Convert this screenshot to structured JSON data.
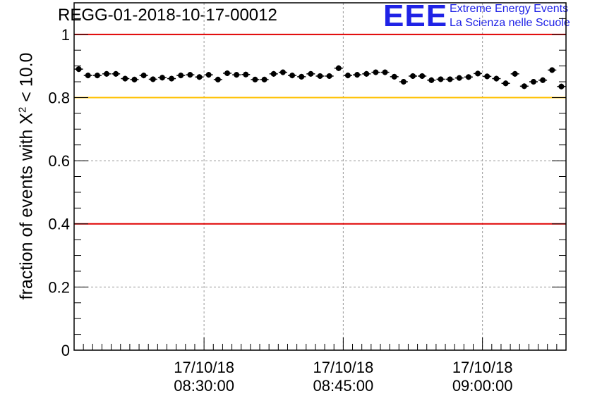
{
  "header": {
    "title": "REGG-01-2018-10-17-00012",
    "logo_letters": "EEE",
    "logo_line1": "Extreme Energy Events",
    "logo_line2": "La Scienza nelle Scuole"
  },
  "chart_data": {
    "type": "scatter",
    "title": "REGG-01-2018-10-17-00012",
    "ylabel_prefix": "fraction of events with X",
    "ylabel_sup": "2",
    "ylabel_suffix": " < 10.0",
    "ylim": [
      0,
      1.1
    ],
    "yticks": [
      {
        "value": 0,
        "label": "0"
      },
      {
        "value": 0.2,
        "label": "0.2"
      },
      {
        "value": 0.4,
        "label": "0.4"
      },
      {
        "value": 0.6,
        "label": "0.6"
      },
      {
        "value": 0.8,
        "label": "0.8"
      },
      {
        "value": 1,
        "label": "1"
      }
    ],
    "xlim_minutes": [
      0,
      53
    ],
    "xticks": [
      {
        "minute": 14,
        "date": "17/10/18",
        "time": "08:30:00"
      },
      {
        "minute": 29,
        "date": "17/10/18",
        "time": "08:45:00"
      },
      {
        "minute": 44,
        "date": "17/10/18",
        "time": "09:00:00"
      }
    ],
    "grid": true,
    "reference_lines": [
      {
        "y": 1.0,
        "color": "#e00000"
      },
      {
        "y": 0.8,
        "color": "#ffc000"
      },
      {
        "y": 0.4,
        "color": "#e00000"
      }
    ],
    "series": [
      {
        "name": "fraction",
        "error": 0.009,
        "x": [
          0.5,
          1.5,
          2.5,
          3.5,
          4.5,
          5.5,
          6.5,
          7.5,
          8.5,
          9.5,
          10.5,
          11.5,
          12.5,
          13.5,
          14.5,
          15.5,
          16.5,
          17.5,
          18.5,
          19.5,
          20.5,
          21.5,
          22.5,
          23.5,
          24.5,
          25.5,
          26.5,
          27.5,
          28.5,
          29.5,
          30.5,
          31.5,
          32.5,
          33.5,
          34.5,
          35.5,
          36.5,
          37.5,
          38.5,
          39.5,
          40.5,
          41.5,
          42.5,
          43.5,
          44.5,
          45.5,
          46.5,
          47.5,
          48.5,
          49.5,
          50.5,
          51.5,
          52.5
        ],
        "values": [
          0.89,
          0.87,
          0.87,
          0.875,
          0.875,
          0.86,
          0.857,
          0.87,
          0.858,
          0.863,
          0.86,
          0.87,
          0.872,
          0.865,
          0.872,
          0.857,
          0.877,
          0.872,
          0.873,
          0.857,
          0.857,
          0.875,
          0.88,
          0.87,
          0.866,
          0.875,
          0.868,
          0.868,
          0.893,
          0.87,
          0.872,
          0.875,
          0.88,
          0.88,
          0.866,
          0.85,
          0.868,
          0.868,
          0.855,
          0.858,
          0.858,
          0.862,
          0.865,
          0.876,
          0.867,
          0.86,
          0.845,
          0.875,
          0.836,
          0.85,
          0.855,
          0.887,
          0.835
        ]
      }
    ]
  }
}
